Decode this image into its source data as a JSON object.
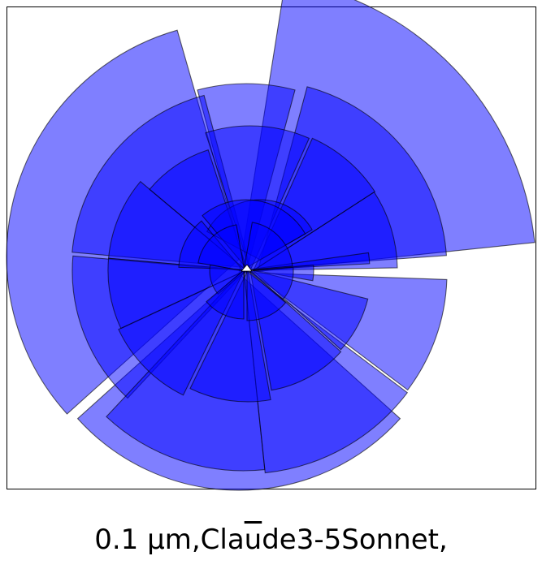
{
  "caption": {
    "prefix": "0.1 µm,Cla",
    "overlined": "u",
    "suffix": "de3-5Sonnet,"
  },
  "colors": {
    "fill": "#0000ff",
    "edge": "#000000",
    "frame": "#000000",
    "background": "#ffffff"
  },
  "diagram": {
    "type": "polar-area-spiral",
    "rings": [
      {
        "name": "outer",
        "fill_opacity": 0.5,
        "wedges": 3
      },
      {
        "name": "second",
        "fill_opacity": 0.5,
        "wedges": 5
      },
      {
        "name": "third",
        "fill_opacity": 0.5,
        "wedges": 8
      },
      {
        "name": "fourth",
        "fill_opacity": 0.5,
        "wedges": 4
      },
      {
        "name": "inner",
        "fill_opacity": 0.5,
        "wedges": 6
      }
    ]
  }
}
